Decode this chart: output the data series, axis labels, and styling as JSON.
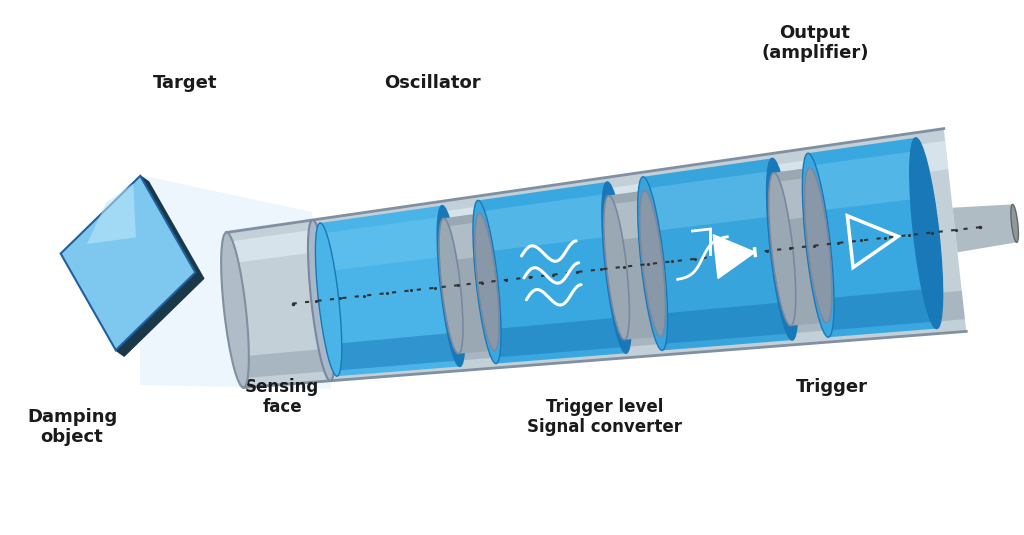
{
  "bg_color": "#ffffff",
  "labels": {
    "target": "Target",
    "damping_object": "Damping\nobject",
    "sensing_face": "Sensing\nface",
    "oscillator": "Oscillator",
    "trigger_level": "Trigger level\nSignal converter",
    "trigger": "Trigger",
    "output": "Output\n(amplifier)"
  },
  "text_color": "#1a1a1a",
  "white": "#ffffff",
  "shell_color": "#c0ccd4",
  "shell_edge": "#8090a0",
  "disc_blue": "#3aA8e0",
  "disc_blue_dark": "#1878b8",
  "disc_blue_light": "#70c8f0",
  "spacer_color": "#8898a8",
  "spacer_light": "#b0c0cc",
  "rod_color": "#a8b4bc",
  "dot_color": "#222222",
  "target_front": "#7ec8f0",
  "target_side": "#1a3848",
  "cone_color": "#d0eaf8"
}
